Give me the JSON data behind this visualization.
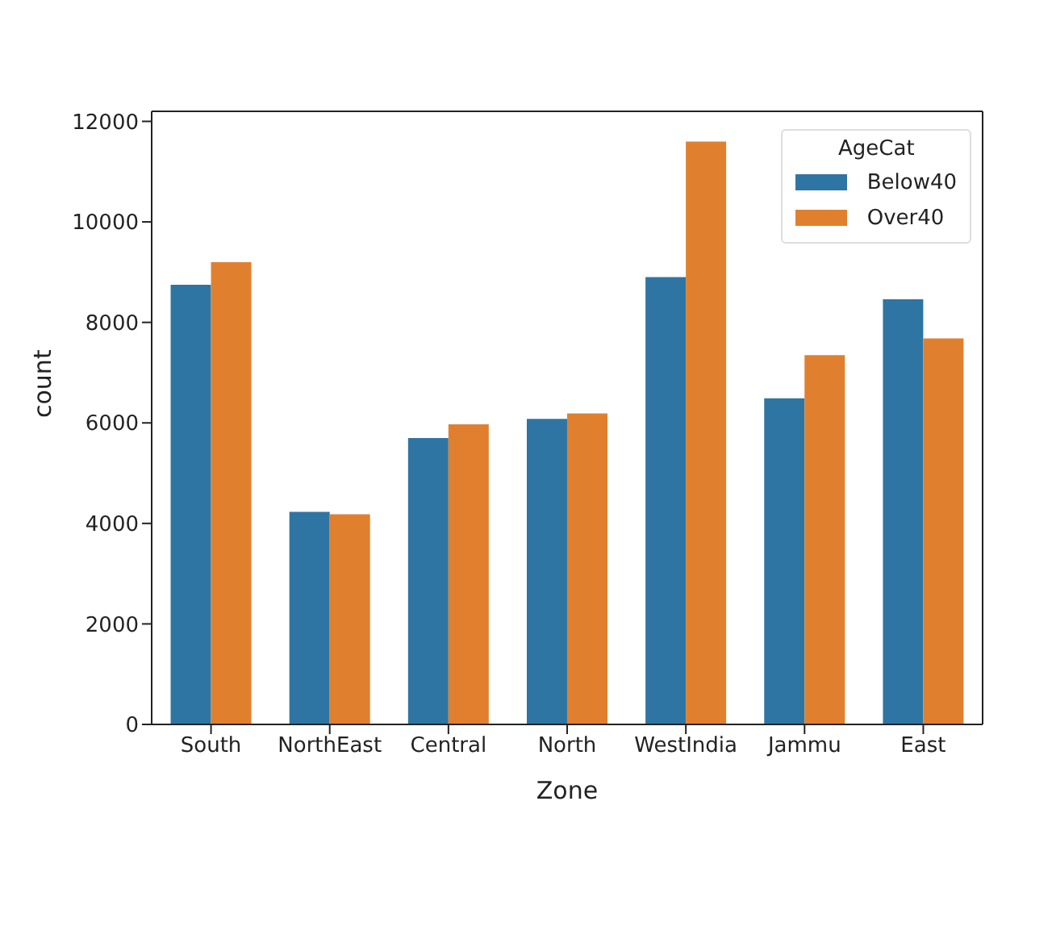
{
  "chart_data": {
    "type": "bar",
    "xlabel": "Zone",
    "ylabel": "count",
    "legend_title": "AgeCat",
    "categories": [
      "South",
      "NorthEast",
      "Central",
      "North",
      "WestIndia",
      "Jammu",
      "East"
    ],
    "series": [
      {
        "name": "Below40",
        "color": "#2e75a3",
        "values": [
          8750,
          4230,
          5700,
          6080,
          8900,
          6490,
          8460
        ]
      },
      {
        "name": "Over40",
        "color": "#e0802e",
        "values": [
          9200,
          4180,
          5970,
          6190,
          11600,
          7350,
          7680
        ]
      }
    ],
    "ylim": [
      0,
      12200
    ],
    "yticks": [
      0,
      2000,
      4000,
      6000,
      8000,
      10000,
      12000
    ],
    "grid": false,
    "legend": "top right"
  }
}
